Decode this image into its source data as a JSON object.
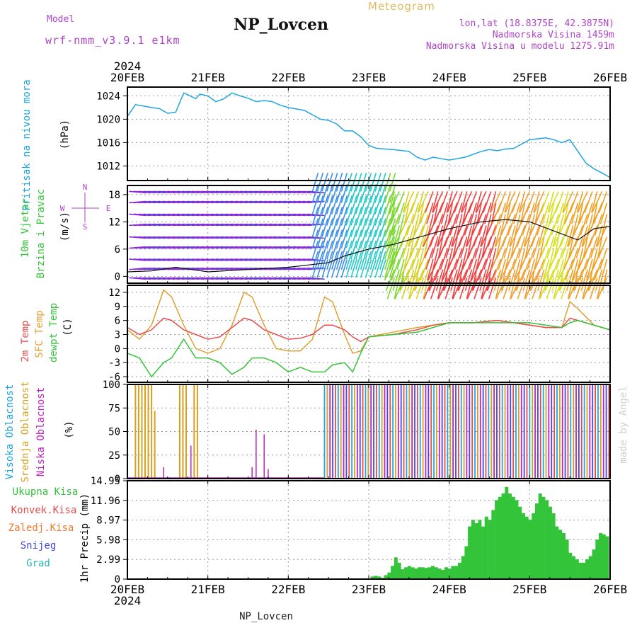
{
  "header": {
    "meteogram": "Meteogram",
    "title": "NP_Lovcen",
    "model_label": "Model",
    "model_name": "wrf-nmm_v3.9.1 e1km",
    "lonlat": "lon,lat (18.8375E, 42.3875N)",
    "elev": "Nadmorska Visina 1459m",
    "elev_model": "Nadmorska Visina u modelu 1275.91m",
    "year_top": "2024",
    "year_bottom": "2024",
    "footer": "NP_Lovcen",
    "credit": "made by Angel"
  },
  "colors": {
    "pressure": "#1ea6e0",
    "wind_label": "#33c43a",
    "temp2m": "#e84b4b",
    "sfc": "#e0a030",
    "dewpt": "#33c43a",
    "cloud_high": "#1ea6e0",
    "cloud_mid": "#d8a022",
    "cloud_low": "#c020c0",
    "rain": "#33c43a",
    "konv": "#e84b4b",
    "zaledj": "#f07a30",
    "snijeg": "#4646e0",
    "grad": "#2ab8b0",
    "wind_dir": "#b044c8"
  },
  "chart_data": [
    {
      "type": "line",
      "panel": "pressure",
      "ylabel": "Pritisak na nivou mora",
      "unit": "(hPa)",
      "x_ticks": [
        "20FEB",
        "21FEB",
        "22FEB",
        "23FEB",
        "24FEB",
        "25FEB",
        "26FEB"
      ],
      "yticks": [
        1012,
        1016,
        1020,
        1024
      ],
      "ylim": [
        1009.5,
        1025.5
      ],
      "series": [
        {
          "x_days": [
            0,
            0.1,
            0.3,
            0.4,
            0.5,
            0.6,
            0.7,
            0.75,
            0.85,
            0.9,
            1.0,
            1.1,
            1.2,
            1.3,
            1.4,
            1.5,
            1.6,
            1.7,
            1.8,
            1.9,
            2.0,
            2.2,
            2.4,
            2.5,
            2.6,
            2.7,
            2.8,
            2.9,
            3.0,
            3.1,
            3.3,
            3.5,
            3.6,
            3.7,
            3.8,
            4.0,
            4.2,
            4.4,
            4.5,
            4.6,
            4.7,
            4.8,
            5.0,
            5.2,
            5.3,
            5.4,
            5.5,
            5.6,
            5.7,
            5.8,
            5.9,
            6.0
          ],
          "values": [
            1020.5,
            1022.5,
            1022.0,
            1021.8,
            1021.0,
            1021.2,
            1024.5,
            1024.2,
            1023.5,
            1024.3,
            1024.0,
            1023.0,
            1023.5,
            1024.5,
            1024.0,
            1023.6,
            1023.0,
            1023.2,
            1023.0,
            1022.4,
            1022.0,
            1021.5,
            1020.0,
            1019.8,
            1019.2,
            1018.0,
            1018.0,
            1017.0,
            1015.5,
            1015.0,
            1014.8,
            1014.5,
            1013.5,
            1013.0,
            1013.5,
            1013.0,
            1013.5,
            1014.5,
            1014.8,
            1014.6,
            1014.9,
            1015.0,
            1016.5,
            1016.8,
            1016.5,
            1016.0,
            1016.5,
            1014.5,
            1012.5,
            1011.5,
            1010.8,
            1010.0
          ]
        }
      ]
    },
    {
      "type": "line",
      "panel": "wind",
      "ylabel": "10m Vjetar Brzina i Pravac",
      "unit": "(m/s)",
      "dir_legend": [
        "N",
        "W",
        "E",
        "S"
      ],
      "yticks": [
        0,
        6,
        12,
        18
      ],
      "ylim": [
        -1.5,
        20
      ],
      "series": [
        {
          "name": "brzina",
          "x_days": [
            0,
            0.3,
            0.6,
            0.8,
            1.0,
            1.5,
            2.0,
            2.5,
            2.7,
            2.9,
            3.0,
            3.3,
            3.6,
            4.0,
            4.4,
            4.7,
            5.0,
            5.3,
            5.6,
            5.8,
            6.0
          ],
          "values": [
            1.0,
            1.2,
            2.0,
            1.5,
            1.0,
            1.5,
            2.0,
            3.0,
            4.5,
            5.5,
            6.0,
            7.0,
            8.5,
            10.5,
            12.0,
            12.5,
            12.0,
            10.0,
            8.0,
            10.5,
            11.0
          ]
        }
      ]
    },
    {
      "type": "line",
      "panel": "temperature",
      "ylabel_parts": [
        "2m Temp",
        "SFC Temp",
        "dewpt Temp"
      ],
      "unit": "(C)",
      "yticks": [
        -6,
        -3,
        0,
        3,
        6,
        9,
        12
      ],
      "ylim": [
        -7.2,
        13.5
      ],
      "series": [
        {
          "name": "2m Temp",
          "x_days": [
            0,
            0.15,
            0.3,
            0.45,
            0.55,
            0.7,
            0.85,
            1.0,
            1.15,
            1.3,
            1.45,
            1.55,
            1.7,
            1.85,
            2.0,
            2.15,
            2.3,
            2.45,
            2.55,
            2.7,
            2.8,
            2.9,
            3.0,
            3.3,
            3.6,
            3.8,
            4.0,
            4.3,
            4.6,
            4.8,
            5.0,
            5.2,
            5.4,
            5.5,
            5.6,
            5.8,
            6.0
          ],
          "values": [
            4.5,
            3.0,
            4.0,
            6.5,
            6.0,
            4.0,
            3.0,
            2.0,
            2.5,
            4.5,
            6.5,
            6.0,
            4.0,
            3.0,
            2.0,
            2.2,
            3.0,
            5.0,
            5.0,
            4.0,
            2.5,
            1.5,
            2.5,
            3.0,
            4.0,
            5.0,
            5.5,
            5.5,
            6.0,
            5.5,
            5.0,
            4.5,
            4.5,
            6.5,
            6.0,
            5.0,
            4.0
          ]
        },
        {
          "name": "SFC Temp",
          "x_days": [
            0,
            0.15,
            0.3,
            0.45,
            0.55,
            0.7,
            0.85,
            1.0,
            1.15,
            1.3,
            1.45,
            1.55,
            1.7,
            1.85,
            2.0,
            2.15,
            2.3,
            2.45,
            2.55,
            2.7,
            2.8,
            2.9,
            3.0,
            3.3,
            3.6,
            3.8,
            4.0,
            4.3,
            4.6,
            4.8,
            5.0,
            5.2,
            5.4,
            5.5,
            5.6,
            5.8,
            6.0
          ],
          "values": [
            4.0,
            2.0,
            5.0,
            12.5,
            11.0,
            5.0,
            0.0,
            -1.0,
            0.0,
            5.0,
            12.0,
            11.0,
            5.0,
            0.0,
            -0.5,
            -0.5,
            2.0,
            11.0,
            10.0,
            3.0,
            -1.0,
            -0.5,
            2.5,
            3.5,
            4.5,
            5.0,
            5.5,
            5.5,
            6.0,
            5.5,
            5.0,
            4.5,
            4.5,
            10.0,
            8.5,
            5.0,
            4.0
          ]
        },
        {
          "name": "dewpt Temp",
          "x_days": [
            0,
            0.15,
            0.3,
            0.45,
            0.55,
            0.7,
            0.85,
            1.0,
            1.15,
            1.3,
            1.45,
            1.55,
            1.7,
            1.85,
            2.0,
            2.15,
            2.3,
            2.45,
            2.55,
            2.7,
            2.8,
            2.9,
            3.0,
            3.3,
            3.6,
            3.8,
            4.0,
            4.3,
            4.6,
            4.8,
            5.0,
            5.2,
            5.4,
            5.5,
            5.6,
            5.8,
            6.0
          ],
          "values": [
            -1.0,
            -2.0,
            -6.0,
            -3.0,
            -2.0,
            2.0,
            -2.0,
            -2.0,
            -3.0,
            -5.5,
            -4.0,
            -2.0,
            -2.0,
            -3.0,
            -5.0,
            -4.0,
            -5.0,
            -5.0,
            -3.5,
            -3.0,
            -5.0,
            -1.0,
            2.5,
            3.0,
            3.5,
            4.5,
            5.5,
            5.5,
            5.5,
            5.5,
            5.5,
            5.0,
            4.5,
            5.5,
            6.0,
            5.0,
            4.0
          ]
        }
      ]
    },
    {
      "type": "bar",
      "panel": "clouds",
      "ylabel_parts": [
        "Visoka Oblacnost",
        "Srednja Oblacnost",
        "Niska Oblacnost"
      ],
      "unit": "(%)",
      "yticks": [
        0,
        25,
        50,
        75,
        100
      ],
      "ylim": [
        0,
        100
      ],
      "mid_bars": {
        "x_days": [
          0.1,
          0.14,
          0.18,
          0.22,
          0.26,
          0.3,
          0.34,
          0.65,
          0.69,
          0.73,
          0.83,
          0.87
        ],
        "values": [
          100,
          100,
          100,
          100,
          100,
          100,
          72,
          100,
          100,
          100,
          100,
          100
        ]
      },
      "low_bars": {
        "x_days": [
          0.45,
          0.79,
          1.55,
          1.6,
          1.7,
          1.75
        ],
        "values": [
          12,
          35,
          12,
          52,
          47,
          10
        ]
      },
      "overcast_from_day": 2.45
    },
    {
      "type": "bar",
      "panel": "precip",
      "ylabel": "1hr Precip",
      "unit": "(mm)",
      "legend": [
        "Ukupna Kisa",
        "Konvek.Kisa",
        "Zaledj.Kisa",
        "Snijeg",
        "Grad"
      ],
      "yticks": [
        0,
        2.99,
        5.98,
        8.97,
        11.96,
        14.95
      ],
      "ylim": [
        0,
        14.95
      ],
      "x_days_start": 3.05,
      "x_days_step": 0.0417,
      "values": [
        0.4,
        0.5,
        0.4,
        0.2,
        0.6,
        1.0,
        2.0,
        3.3,
        2.5,
        1.5,
        1.8,
        2.0,
        1.8,
        1.6,
        1.8,
        1.8,
        1.7,
        1.8,
        2.0,
        1.8,
        1.6,
        1.4,
        1.8,
        1.6,
        2.0,
        2.0,
        2.5,
        3.5,
        5.0,
        8.0,
        9.0,
        8.5,
        9.0,
        8.0,
        9.5,
        9.0,
        10.5,
        12.0,
        12.5,
        13.0,
        14.0,
        13.0,
        12.5,
        12.0,
        11.0,
        10.0,
        9.5,
        9.0,
        10.0,
        11.5,
        13.0,
        12.5,
        12.0,
        11.0,
        10.0,
        8.0,
        7.5,
        7.0,
        6.0,
        4.0,
        3.5,
        3.0,
        2.5,
        2.5,
        3.0,
        3.5,
        4.5,
        6.0,
        7.0,
        6.8,
        6.5,
        7.0
      ]
    }
  ]
}
